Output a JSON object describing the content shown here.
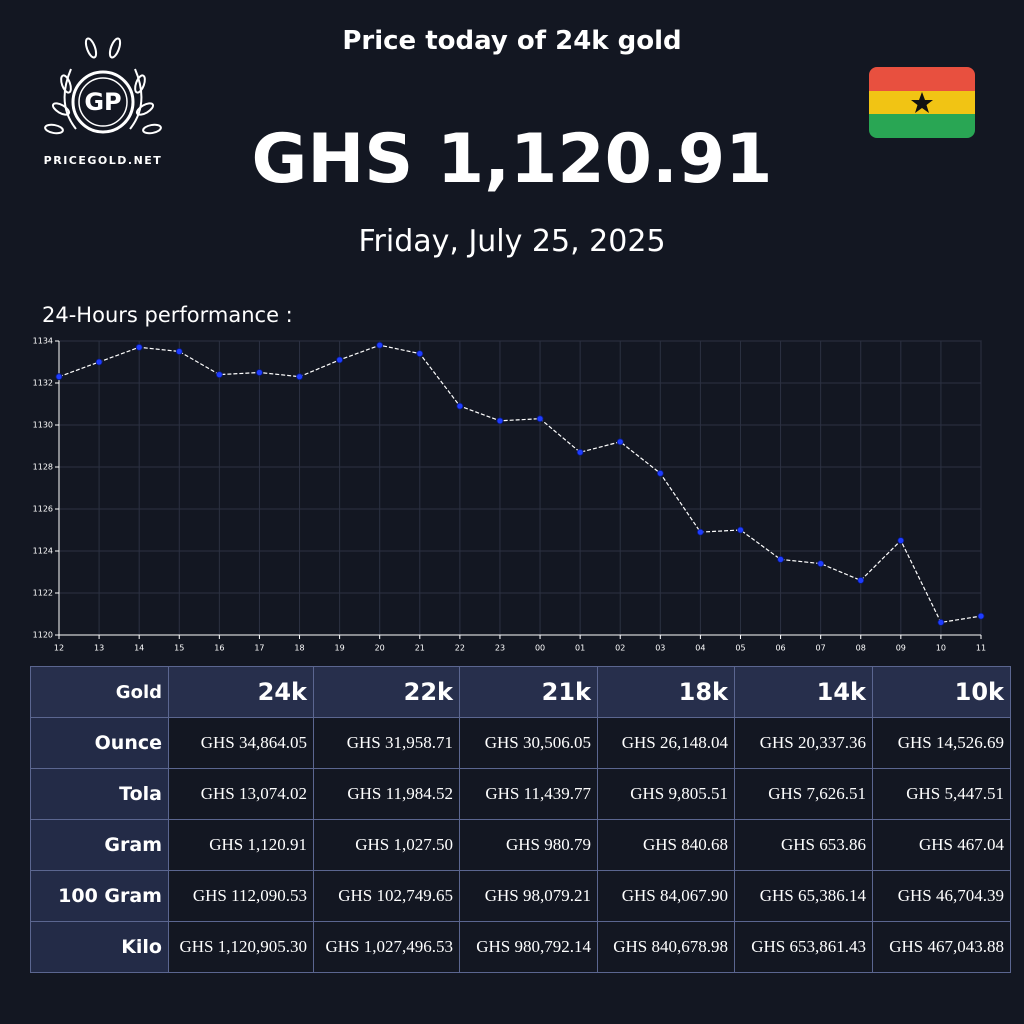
{
  "header": {
    "title": "Price today of 24k gold",
    "price": "GHS 1,120.91",
    "date": "Friday, July 25, 2025",
    "logo_initials": "GP",
    "logo_text": "PRICEGOLD.NET"
  },
  "chart_data": {
    "type": "line",
    "title": "24-Hours performance :",
    "categories": [
      "12",
      "13",
      "14",
      "15",
      "16",
      "17",
      "18",
      "19",
      "20",
      "21",
      "22",
      "23",
      "00",
      "01",
      "02",
      "03",
      "04",
      "05",
      "06",
      "07",
      "08",
      "09",
      "10",
      "11"
    ],
    "series": [
      {
        "color": "#1f3dff",
        "values": [
          1132.3,
          1133.0,
          1133.7,
          1133.5,
          1132.4,
          1132.5,
          1132.3,
          1133.1,
          1133.8,
          1133.4,
          1130.9,
          1130.2,
          1130.3,
          1128.7,
          1129.2,
          1127.7,
          1124.9,
          1125.0,
          1123.6,
          1123.4,
          1122.6,
          1124.5,
          1120.6,
          1120.9
        ]
      }
    ],
    "ylim": [
      1120,
      1134
    ],
    "yticks": [
      1120,
      1122,
      1124,
      1126,
      1128,
      1130,
      1132,
      1134
    ],
    "grid": true
  },
  "table": {
    "header": [
      "Gold",
      "24k",
      "22k",
      "21k",
      "18k",
      "14k",
      "10k"
    ],
    "rows": [
      [
        "Ounce",
        "GHS 34,864.05",
        "GHS 31,958.71",
        "GHS 30,506.05",
        "GHS 26,148.04",
        "GHS 20,337.36",
        "GHS 14,526.69"
      ],
      [
        "Tola",
        "GHS 13,074.02",
        "GHS 11,984.52",
        "GHS 11,439.77",
        "GHS 9,805.51",
        "GHS 7,626.51",
        "GHS 5,447.51"
      ],
      [
        "Gram",
        "GHS 1,120.91",
        "GHS 1,027.50",
        "GHS 980.79",
        "GHS 840.68",
        "GHS 653.86",
        "GHS 467.04"
      ],
      [
        "100 Gram",
        "GHS 112,090.53",
        "GHS 102,749.65",
        "GHS 98,079.21",
        "GHS 84,067.90",
        "GHS 65,386.14",
        "GHS 46,704.39"
      ],
      [
        "Kilo",
        "GHS 1,120,905.30",
        "GHS 1,027,496.53",
        "GHS 980,792.14",
        "GHS 840,678.98",
        "GHS 653,861.43",
        "GHS 467,043.88"
      ]
    ]
  }
}
